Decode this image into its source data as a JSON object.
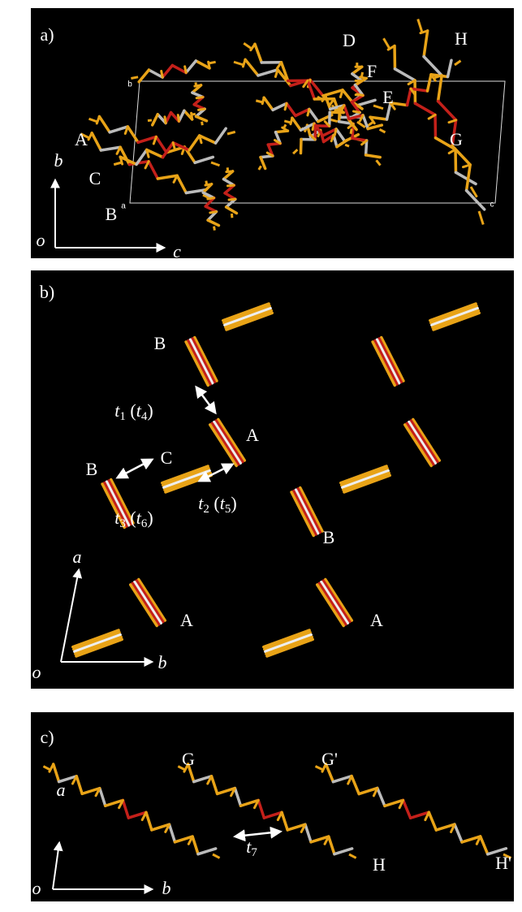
{
  "panels": [
    {
      "label": "a)",
      "atoms": [
        "D",
        "H",
        "F",
        "E",
        "G",
        "A",
        "C",
        "B"
      ],
      "cell": [
        "b",
        "a",
        "c"
      ],
      "axes": [
        "o",
        "b",
        "c"
      ]
    },
    {
      "label": "b)",
      "atoms": [
        "B",
        "A",
        "C",
        "B",
        "B",
        "A",
        "A"
      ],
      "contacts": [
        [
          {
            "italic": "t"
          },
          {
            "sub": "1"
          },
          {
            "plain": " ("
          },
          {
            "italic": "t"
          },
          {
            "sub": "4"
          },
          {
            "plain": ")"
          }
        ],
        [
          {
            "italic": "t"
          },
          {
            "sub": "2"
          },
          {
            "plain": " ("
          },
          {
            "italic": "t"
          },
          {
            "sub": "5"
          },
          {
            "plain": ")"
          }
        ],
        [
          {
            "italic": "t"
          },
          {
            "sub": "3"
          },
          {
            "plain": " ("
          },
          {
            "italic": "t"
          },
          {
            "sub": "6"
          },
          {
            "plain": ")"
          }
        ]
      ],
      "axes": [
        "o",
        "a",
        "b"
      ]
    },
    {
      "label": "c)",
      "atoms": [
        "G",
        "G'",
        "H",
        "H'"
      ],
      "contacts": [
        [
          {
            "italic": "t"
          },
          {
            "sub": "7"
          }
        ]
      ],
      "axes": [
        "o",
        "a",
        "b"
      ]
    }
  ]
}
